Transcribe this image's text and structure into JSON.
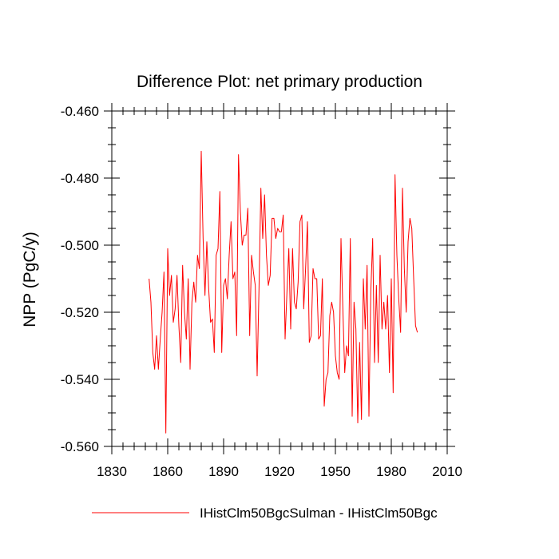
{
  "chart_data": {
    "type": "line",
    "title": "Difference Plot: net primary production",
    "xlabel": "",
    "ylabel": "NPP  (PgC/y)",
    "xlim": [
      1830,
      2010
    ],
    "ylim": [
      -0.56,
      -0.46
    ],
    "x_ticks": [
      1830,
      1860,
      1890,
      1920,
      1950,
      1980,
      2010
    ],
    "y_ticks": [
      -0.46,
      -0.48,
      -0.5,
      -0.52,
      -0.54,
      -0.56
    ],
    "x_tick_labels": [
      "1830",
      "1860",
      "1890",
      "1920",
      "1950",
      "1980",
      "2010"
    ],
    "y_tick_labels": [
      "-0.460",
      "-0.480",
      "-0.500",
      "-0.520",
      "-0.540",
      "-0.560"
    ],
    "grid": false,
    "legend_position": "bottom",
    "series": [
      {
        "name": "IHistClm50BgcSulman - IHistClm50Bgc",
        "color": "#ff0000",
        "x_start": 1850,
        "x_step": 1,
        "values": [
          -0.51,
          -0.517,
          -0.532,
          -0.537,
          -0.527,
          -0.537,
          -0.528,
          -0.52,
          -0.508,
          -0.556,
          -0.501,
          -0.515,
          -0.509,
          -0.523,
          -0.519,
          -0.509,
          -0.524,
          -0.535,
          -0.506,
          -0.52,
          -0.528,
          -0.51,
          -0.537,
          -0.517,
          -0.511,
          -0.517,
          -0.503,
          -0.507,
          -0.472,
          -0.498,
          -0.515,
          -0.499,
          -0.513,
          -0.523,
          -0.522,
          -0.532,
          -0.503,
          -0.501,
          -0.484,
          -0.532,
          -0.512,
          -0.51,
          -0.516,
          -0.503,
          -0.493,
          -0.51,
          -0.508,
          -0.527,
          -0.473,
          -0.49,
          -0.5,
          -0.497,
          -0.497,
          -0.489,
          -0.527,
          -0.503,
          -0.508,
          -0.512,
          -0.539,
          -0.513,
          -0.483,
          -0.498,
          -0.485,
          -0.503,
          -0.512,
          -0.509,
          -0.492,
          -0.492,
          -0.498,
          -0.495,
          -0.496,
          -0.496,
          -0.491,
          -0.528,
          -0.514,
          -0.501,
          -0.525,
          -0.501,
          -0.517,
          -0.519,
          -0.511,
          -0.493,
          -0.491,
          -0.519,
          -0.507,
          -0.493,
          -0.529,
          -0.527,
          -0.507,
          -0.51,
          -0.51,
          -0.528,
          -0.527,
          -0.51,
          -0.548,
          -0.54,
          -0.538,
          -0.521,
          -0.517,
          -0.52,
          -0.533,
          -0.538,
          -0.54,
          -0.498,
          -0.519,
          -0.538,
          -0.53,
          -0.533,
          -0.498,
          -0.551,
          -0.517,
          -0.525,
          -0.553,
          -0.529,
          -0.552,
          -0.51,
          -0.525,
          -0.506,
          -0.551,
          -0.514,
          -0.498,
          -0.535,
          -0.512,
          -0.535,
          -0.503,
          -0.525,
          -0.517,
          -0.525,
          -0.515,
          -0.538,
          -0.51,
          -0.544,
          -0.479,
          -0.503,
          -0.516,
          -0.526,
          -0.483,
          -0.507,
          -0.52,
          -0.499,
          -0.492,
          -0.495,
          -0.51,
          -0.524,
          -0.526
        ]
      }
    ]
  }
}
